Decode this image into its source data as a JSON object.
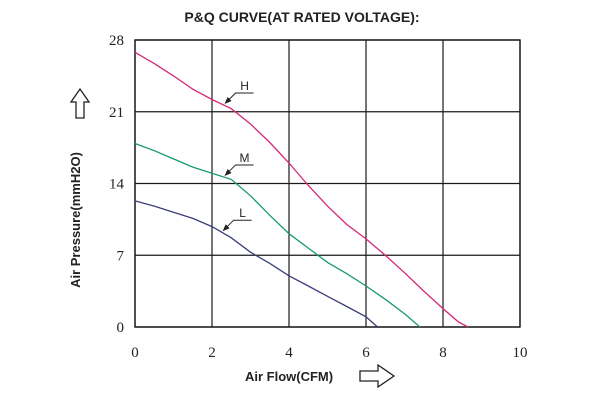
{
  "chart_data": {
    "type": "line",
    "title": "P&Q CURVE(AT RATED VOLTAGE):",
    "xlabel": "Air Flow(CFM)",
    "ylabel": "Air Pressure(mmH2O)",
    "xlim": [
      0,
      10
    ],
    "ylim": [
      0,
      28
    ],
    "x_ticks": [
      0,
      2,
      4,
      6,
      8,
      10
    ],
    "y_ticks": [
      0,
      7,
      14,
      21,
      28
    ],
    "x_tick_labels": [
      "0",
      "2",
      "4",
      "6",
      "8",
      "10"
    ],
    "y_tick_labels": [
      "0",
      "7",
      "14",
      "21",
      "28"
    ],
    "grid": true,
    "series": [
      {
        "name": "H",
        "color": "#d6277a",
        "points": [
          [
            0,
            26.8
          ],
          [
            0.5,
            25.7
          ],
          [
            1.0,
            24.5
          ],
          [
            1.5,
            23.2
          ],
          [
            2.0,
            22.2
          ],
          [
            2.5,
            21.3
          ],
          [
            3.0,
            19.8
          ],
          [
            3.5,
            18.0
          ],
          [
            4.0,
            16.0
          ],
          [
            4.5,
            13.8
          ],
          [
            5.0,
            11.8
          ],
          [
            5.5,
            10.0
          ],
          [
            6.0,
            8.6
          ],
          [
            6.5,
            7.0
          ],
          [
            7.0,
            5.3
          ],
          [
            7.5,
            3.5
          ],
          [
            8.0,
            1.8
          ],
          [
            8.4,
            0.5
          ],
          [
            8.65,
            0
          ]
        ]
      },
      {
        "name": "M",
        "color": "#179b6c",
        "points": [
          [
            0,
            17.9
          ],
          [
            0.5,
            17.2
          ],
          [
            1.0,
            16.4
          ],
          [
            1.5,
            15.6
          ],
          [
            2.0,
            15.0
          ],
          [
            2.5,
            14.4
          ],
          [
            3.0,
            12.8
          ],
          [
            3.5,
            10.9
          ],
          [
            4.0,
            9.1
          ],
          [
            4.5,
            7.7
          ],
          [
            5.0,
            6.3
          ],
          [
            5.5,
            5.2
          ],
          [
            6.0,
            4.0
          ],
          [
            6.5,
            2.7
          ],
          [
            7.0,
            1.3
          ],
          [
            7.4,
            0
          ]
        ]
      },
      {
        "name": "L",
        "color": "#3a3e7c",
        "points": [
          [
            0,
            12.3
          ],
          [
            0.5,
            11.8
          ],
          [
            1.0,
            11.2
          ],
          [
            1.5,
            10.6
          ],
          [
            2.0,
            9.8
          ],
          [
            2.5,
            8.7
          ],
          [
            3.0,
            7.3
          ],
          [
            3.5,
            6.2
          ],
          [
            4.0,
            5.0
          ],
          [
            4.5,
            4.0
          ],
          [
            5.0,
            3.0
          ],
          [
            5.5,
            2.0
          ],
          [
            6.0,
            1.0
          ],
          [
            6.3,
            0
          ]
        ]
      }
    ]
  }
}
